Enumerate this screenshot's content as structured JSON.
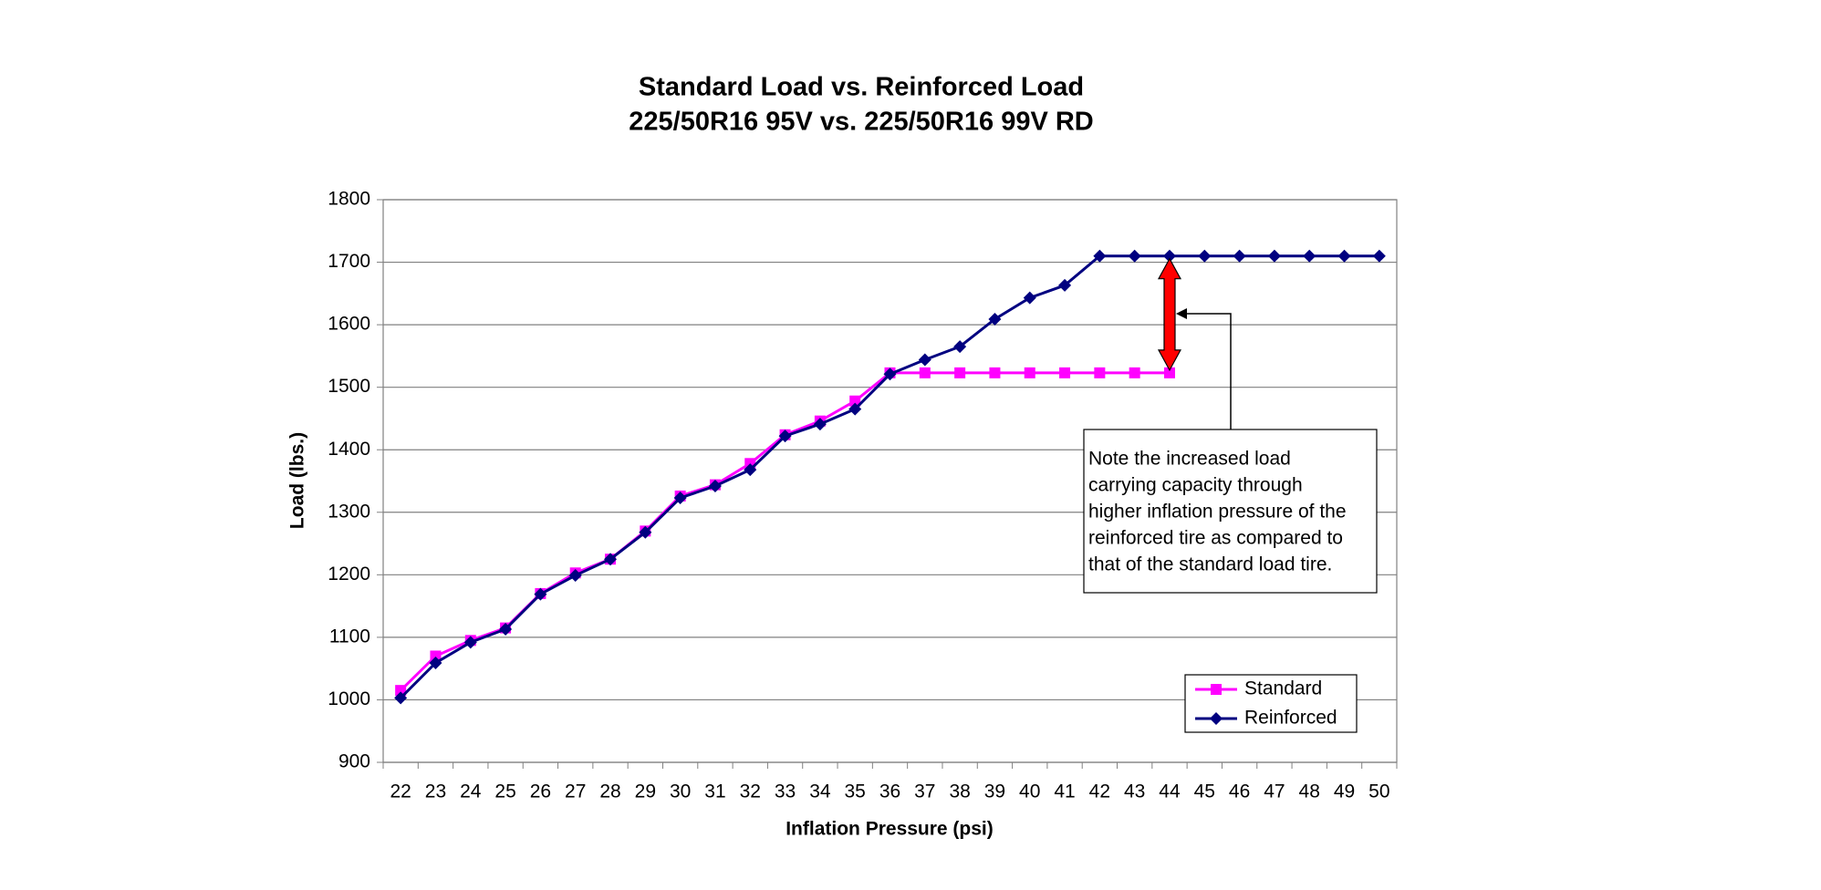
{
  "chart_data": {
    "type": "line",
    "title": [
      "Standard Load vs. Reinforced Load",
      "225/50R16 95V vs. 225/50R16 99V RD"
    ],
    "x_label": "Inflation Pressure (psi)",
    "y_label": "Load (lbs.)",
    "categories": [
      "22",
      "23",
      "24",
      "25",
      "26",
      "27",
      "28",
      "29",
      "30",
      "31",
      "32",
      "33",
      "34",
      "35",
      "36",
      "37",
      "38",
      "39",
      "40",
      "41",
      "42",
      "43",
      "44",
      "45",
      "46",
      "47",
      "48",
      "49",
      "50"
    ],
    "series": [
      {
        "name": "Standard",
        "color": "#ff00ff",
        "marker": "square",
        "values": [
          1015,
          1070,
          1095,
          1115,
          1170,
          1203,
          1225,
          1270,
          1326,
          1344,
          1378,
          1424,
          1446,
          1478,
          1523,
          1523,
          1523,
          1523,
          1523,
          1523,
          1523,
          1523,
          1523,
          null,
          null,
          null,
          null,
          null,
          null
        ]
      },
      {
        "name": "Reinforced",
        "color": "#000080",
        "marker": "diamond",
        "values": [
          1003,
          1059,
          1092,
          1113,
          1169,
          1199,
          1225,
          1268,
          1323,
          1342,
          1368,
          1422,
          1441,
          1465,
          1521,
          1544,
          1565,
          1609,
          1643,
          1663,
          1710,
          1710,
          1710,
          1710,
          1710,
          1710,
          1710,
          1710,
          1710
        ]
      }
    ],
    "ylim": [
      900,
      1800
    ],
    "yticks": [
      900,
      1000,
      1100,
      1200,
      1300,
      1400,
      1500,
      1600,
      1700,
      1800
    ],
    "grid": true,
    "legend": "lower right",
    "annotation": [
      "Note the increased load",
      "carrying capacity through",
      "higher inflation pressure of the",
      "reinforced tire as compared to",
      "that of the standard load tire."
    ]
  }
}
